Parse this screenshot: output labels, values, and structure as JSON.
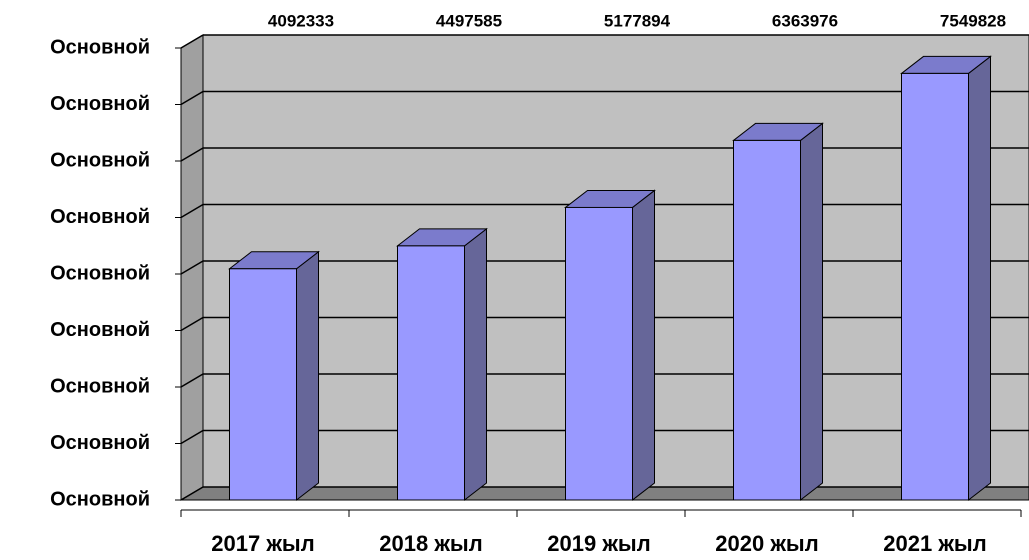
{
  "chart_data": {
    "type": "bar3d",
    "categories": [
      "2017 жыл",
      "2018 жыл",
      "2019 жыл",
      "2020 жыл",
      "2021 жыл"
    ],
    "values": [
      4092333,
      4497585,
      5177894,
      6363976,
      7549828
    ],
    "color": "#9999ff",
    "ylim": [
      0,
      8000000
    ],
    "yticks": [
      {
        "value": 0,
        "label": "Основной"
      },
      {
        "value": 1000000,
        "label": "Основной"
      },
      {
        "value": 2000000,
        "label": "Основной"
      },
      {
        "value": 3000000,
        "label": "Основной"
      },
      {
        "value": 4000000,
        "label": "Основной"
      },
      {
        "value": 5000000,
        "label": "Основной"
      },
      {
        "value": 6000000,
        "label": "Основной"
      },
      {
        "value": 7000000,
        "label": "Основной"
      },
      {
        "value": 8000000,
        "label": "Основной"
      }
    ],
    "grid": true
  }
}
